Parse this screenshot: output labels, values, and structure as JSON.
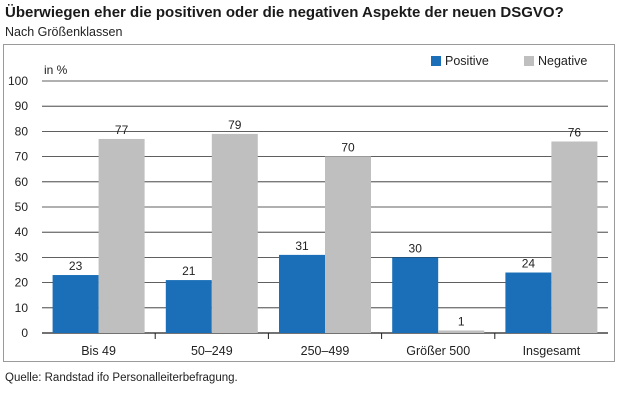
{
  "title": "Überwiegen eher die positiven oder die negativen Aspekte der neuen DSGVO?",
  "subtitle": "Nach Größenklassen",
  "source": "Quelle: Randstad ifo Personalleiterbefragung.",
  "chart_data": {
    "type": "bar",
    "title": "Überwiegen eher die positiven oder die negativen Aspekte der neuen DSGVO?",
    "subtitle": "Nach Größenklassen",
    "unit_label": "in %",
    "xlabel": "",
    "ylabel": "",
    "ylim": [
      0,
      100
    ],
    "yticks": [
      0,
      10,
      20,
      30,
      40,
      50,
      60,
      70,
      80,
      90,
      100
    ],
    "grid": true,
    "legend_position": "top-right",
    "categories": [
      "Bis 49",
      "50–249",
      "250–499",
      "Größer 500",
      "Insgesamt"
    ],
    "series": [
      {
        "name": "Positive",
        "color": "#1a6fb8",
        "values": [
          23,
          21,
          31,
          30,
          24
        ]
      },
      {
        "name": "Negative",
        "color": "#bfbfbf",
        "values": [
          77,
          79,
          70,
          1,
          76
        ]
      }
    ]
  }
}
